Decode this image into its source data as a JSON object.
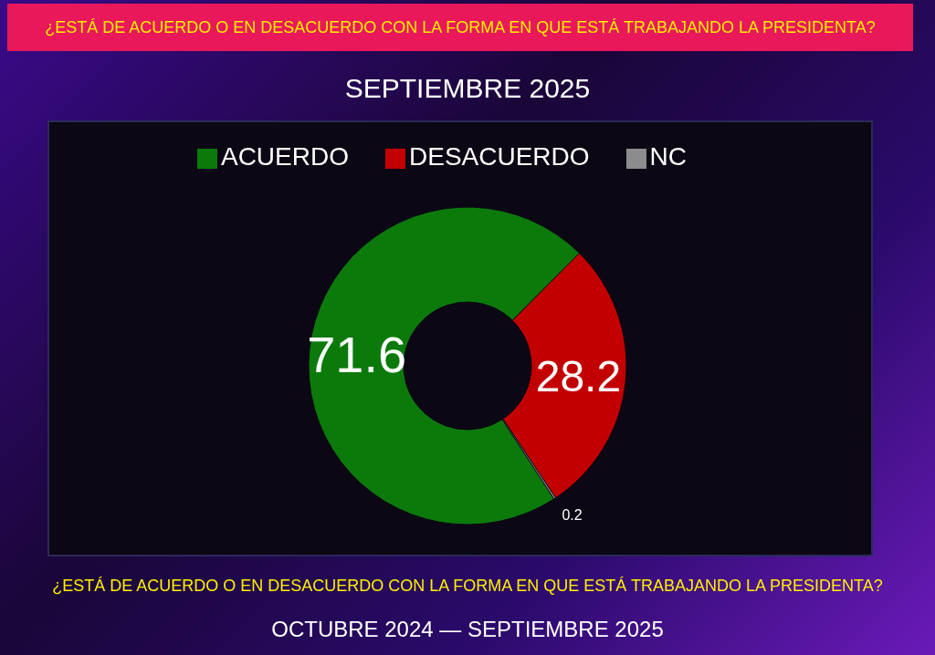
{
  "chart_data": {
    "type": "donut",
    "title": "¿ESTÁ DE ACUERDO O EN DESACUERDO CON LA FORMA EN QUE ESTÁ TRABAJANDO LA PRESIDENTA?",
    "subtitle": "SEPTIEMBRE 2025",
    "categories": [
      "ACUERDO",
      "DESACUERDO",
      "NC"
    ],
    "values": [
      71.6,
      28.2,
      0.2
    ],
    "colors": [
      "#0b7a0b",
      "#c30000",
      "#8c8c8c"
    ],
    "data_labels": true,
    "legend": "top",
    "annotations": [
      "¿ESTÁ DE ACUERDO O EN DESACUERDO CON LA FORMA EN QUE ESTÁ TRABAJANDO LA PRESIDENTA?",
      "OCTUBRE 2024 — SEPTIEMBRE 2025"
    ]
  }
}
